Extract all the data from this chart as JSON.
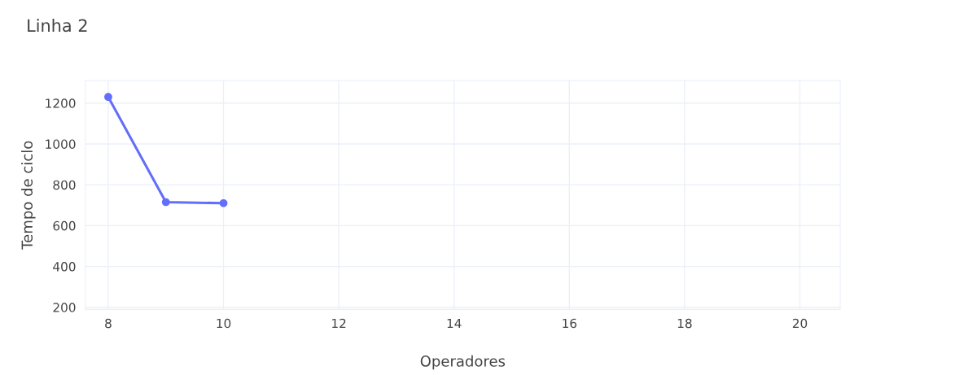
{
  "chart_data": {
    "type": "line",
    "title": "Linha 2",
    "xlabel": "Operadores",
    "ylabel": "Tempo de ciclo",
    "x": [
      8,
      9,
      10
    ],
    "series": [
      {
        "color": "#636efa",
        "values": [
          1230,
          715,
          710
        ]
      }
    ],
    "xlim": [
      7.6,
      20.7
    ],
    "xticks": [
      8,
      10,
      12,
      14,
      16,
      18,
      20
    ],
    "ylim": [
      190,
      1310
    ],
    "yticks": [
      200,
      400,
      600,
      800,
      1000,
      1200
    ],
    "grid": true,
    "marker": "circle",
    "line_style": "solid"
  }
}
